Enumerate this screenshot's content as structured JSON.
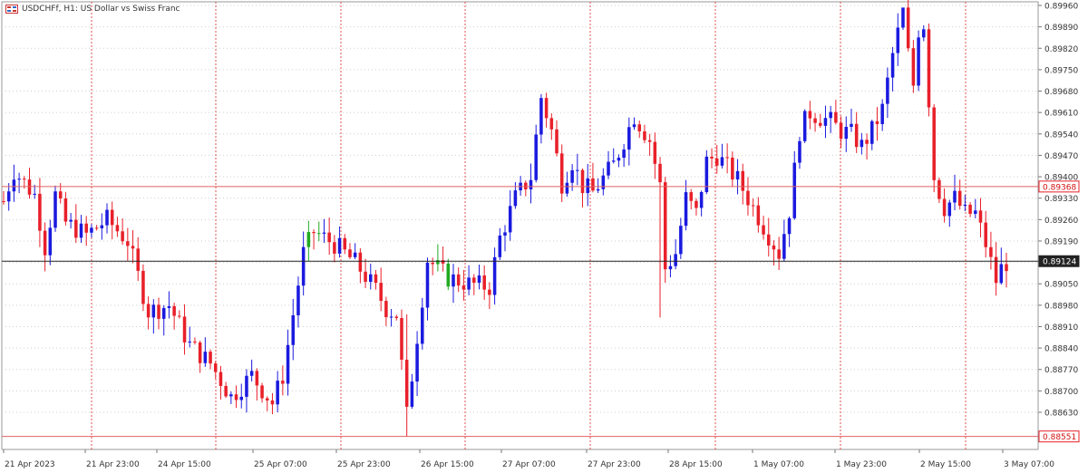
{
  "header": {
    "symbol_label": "USDCHFf, H1:  US Dollar vs Swiss Franc",
    "icon": "chart-window-icon"
  },
  "colors": {
    "bull": "#1a1adf",
    "bear": "#e8202a",
    "neutral": "#22aa22",
    "grid": "#cfcfcf",
    "vgrid": "#e05050",
    "hline": "#e06060",
    "last": "#222222"
  },
  "chart_data": {
    "type": "candlestick",
    "symbol": "USDCHFf",
    "timeframe": "H1",
    "ylim": [
      0.8852,
      0.8996
    ],
    "y_ticks": [
      "0.89960",
      "0.89890",
      "0.89820",
      "0.89750",
      "0.89680",
      "0.89610",
      "0.89540",
      "0.89470",
      "0.89400",
      "0.89330",
      "0.89260",
      "0.89190",
      "0.89120",
      "0.89050",
      "0.88980",
      "0.88910",
      "0.88840",
      "0.88770",
      "0.88700",
      "0.88630"
    ],
    "x_ticks": [
      "21 Apr 2023",
      "21 Apr 23:00",
      "24 Apr 15:00",
      "25 Apr 07:00",
      "25 Apr 23:00",
      "26 Apr 15:00",
      "27 Apr 07:00",
      "27 Apr 23:00",
      "28 Apr 15:00",
      "1 May 07:00",
      "1 May 23:00",
      "2 May 15:00",
      "3 May 07:00"
    ],
    "horizontal_lines": [
      {
        "value": 0.89368,
        "label": "0.89368",
        "style": "red"
      },
      {
        "value": 0.89124,
        "label": "0.89124",
        "style": "last"
      },
      {
        "value": 0.88551,
        "label": "0.88551",
        "style": "red"
      }
    ],
    "anchors": [
      {
        "i": 0,
        "p": 0.8932
      },
      {
        "i": 2,
        "p": 0.8942
      },
      {
        "i": 6,
        "p": 0.8934
      },
      {
        "i": 8,
        "p": 0.8917
      },
      {
        "i": 10,
        "p": 0.8934
      },
      {
        "i": 12,
        "p": 0.8925
      },
      {
        "i": 16,
        "p": 0.8921
      },
      {
        "i": 20,
        "p": 0.8926
      },
      {
        "i": 24,
        "p": 0.8919
      },
      {
        "i": 28,
        "p": 0.8896
      },
      {
        "i": 32,
        "p": 0.8898
      },
      {
        "i": 36,
        "p": 0.8885
      },
      {
        "i": 40,
        "p": 0.8879
      },
      {
        "i": 44,
        "p": 0.8868
      },
      {
        "i": 48,
        "p": 0.8875
      },
      {
        "i": 52,
        "p": 0.8866
      },
      {
        "i": 54,
        "p": 0.8875
      },
      {
        "i": 58,
        "p": 0.8915
      },
      {
        "i": 60,
        "p": 0.8922
      },
      {
        "i": 64,
        "p": 0.8918
      },
      {
        "i": 68,
        "p": 0.8912
      },
      {
        "i": 72,
        "p": 0.8903
      },
      {
        "i": 74,
        "p": 0.8897
      },
      {
        "i": 76,
        "p": 0.8895
      },
      {
        "i": 78,
        "p": 0.8862
      },
      {
        "i": 80,
        "p": 0.8888
      },
      {
        "i": 82,
        "p": 0.8913
      },
      {
        "i": 86,
        "p": 0.8907
      },
      {
        "i": 90,
        "p": 0.8905
      },
      {
        "i": 94,
        "p": 0.8904
      },
      {
        "i": 96,
        "p": 0.892
      },
      {
        "i": 99,
        "p": 0.8933
      },
      {
        "i": 102,
        "p": 0.894
      },
      {
        "i": 104,
        "p": 0.8966
      },
      {
        "i": 106,
        "p": 0.8955
      },
      {
        "i": 108,
        "p": 0.8938
      },
      {
        "i": 110,
        "p": 0.8945
      },
      {
        "i": 112,
        "p": 0.8937
      },
      {
        "i": 114,
        "p": 0.8935
      },
      {
        "i": 118,
        "p": 0.8944
      },
      {
        "i": 122,
        "p": 0.896
      },
      {
        "i": 125,
        "p": 0.8952
      },
      {
        "i": 127,
        "p": 0.8937
      },
      {
        "i": 128,
        "p": 0.891
      },
      {
        "i": 130,
        "p": 0.8915
      },
      {
        "i": 132,
        "p": 0.8933
      },
      {
        "i": 134,
        "p": 0.8928
      },
      {
        "i": 136,
        "p": 0.8945
      },
      {
        "i": 138,
        "p": 0.8947
      },
      {
        "i": 140,
        "p": 0.8943
      },
      {
        "i": 142,
        "p": 0.8939
      },
      {
        "i": 146,
        "p": 0.8927
      },
      {
        "i": 150,
        "p": 0.8915
      },
      {
        "i": 152,
        "p": 0.8929
      },
      {
        "i": 154,
        "p": 0.8955
      },
      {
        "i": 156,
        "p": 0.8961
      },
      {
        "i": 160,
        "p": 0.8958
      },
      {
        "i": 162,
        "p": 0.8955
      },
      {
        "i": 164,
        "p": 0.8954
      },
      {
        "i": 166,
        "p": 0.895
      },
      {
        "i": 168,
        "p": 0.8955
      },
      {
        "i": 170,
        "p": 0.8962
      },
      {
        "i": 172,
        "p": 0.898
      },
      {
        "i": 174,
        "p": 0.8994
      },
      {
        "i": 175,
        "p": 0.898
      },
      {
        "i": 176,
        "p": 0.897
      },
      {
        "i": 177,
        "p": 0.8988
      },
      {
        "i": 178,
        "p": 0.899
      },
      {
        "i": 180,
        "p": 0.894
      },
      {
        "i": 182,
        "p": 0.893
      },
      {
        "i": 184,
        "p": 0.8933
      },
      {
        "i": 186,
        "p": 0.8928
      },
      {
        "i": 188,
        "p": 0.8928
      },
      {
        "i": 190,
        "p": 0.8918
      },
      {
        "i": 192,
        "p": 0.8906
      },
      {
        "i": 193,
        "p": 0.891
      },
      {
        "i": 194,
        "p": 0.8912
      }
    ],
    "neutral_candles": [
      59,
      61,
      84,
      86
    ],
    "candle_count": 195
  }
}
